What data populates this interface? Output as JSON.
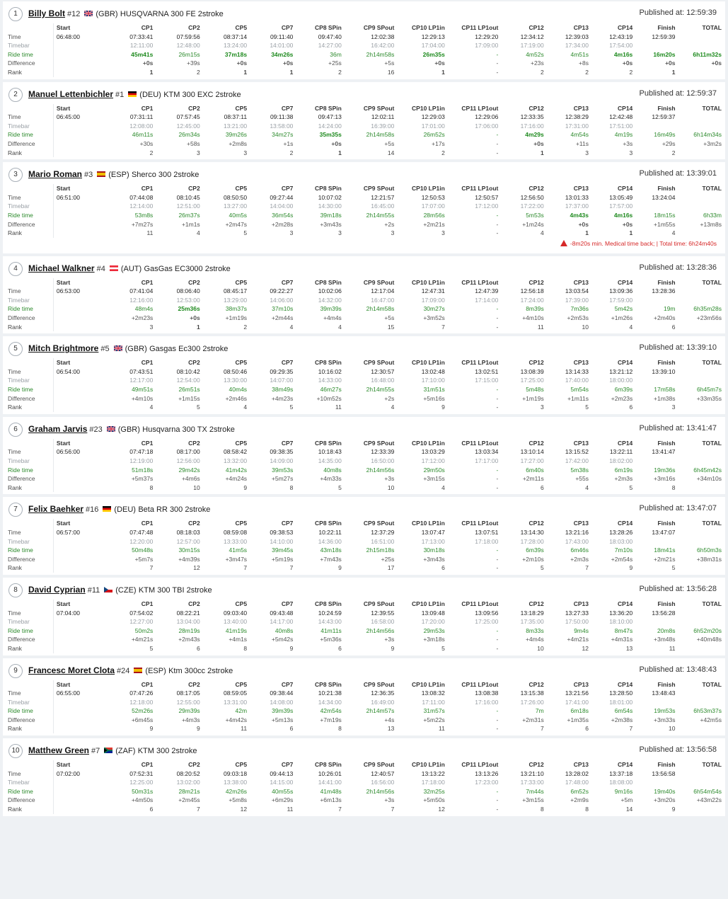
{
  "headers": [
    "",
    "Start",
    "CP1",
    "CP2",
    "CP5",
    "CP7",
    "CP8 SPin",
    "CP9 SPout",
    "CP10 LP1in",
    "CP11 LP1out",
    "CP12",
    "CP13",
    "CP14",
    "Finish",
    "TOTAL"
  ],
  "row_labels": {
    "time": "Time",
    "timebar": "Timebar",
    "ride": "Ride time",
    "diff": "Difference",
    "rank": "Rank"
  },
  "colors": {
    "green_highlight": "#1e8a1e",
    "ride_green": "#2e8b2e",
    "warning_red": "#d62828"
  },
  "riders": [
    {
      "pos": "1",
      "name": "Billy Bolt",
      "number": "#12",
      "country": "(GBR)",
      "flag": "GBR",
      "bike": "HUSQVARNA 300 FE 2stroke",
      "published": "Published at: 12:59:39",
      "time": [
        "06:48:00",
        "07:33:41",
        "07:59:56",
        "08:37:14",
        "09:11:40",
        "09:47:40",
        "12:02:38",
        "12:29:13",
        "12:29:20",
        "12:34:12",
        "12:39:03",
        "12:43:19",
        "12:59:39",
        ""
      ],
      "timebar": [
        "",
        "12:11:00",
        "12:48:00",
        "13:24:00",
        "14:01:00",
        "14:27:00",
        "16:42:00",
        "17:04:00",
        "17:09:00",
        "17:19:00",
        "17:34:00",
        "17:54:00",
        "",
        ""
      ],
      "ride": [
        "",
        "45m41s",
        "26m15s",
        "37m18s",
        "34m26s",
        "36m",
        "2h14m58s",
        "26m35s",
        "-",
        "4m52s",
        "4m51s",
        "4m16s",
        "16m20s",
        "6h11m32s"
      ],
      "diff": [
        "",
        "+0s",
        "+39s",
        "+0s",
        "+0s",
        "+25s",
        "+5s",
        "+0s",
        "-",
        "+23s",
        "+8s",
        "+0s",
        "+0s",
        "+0s"
      ],
      "rank": [
        "",
        "1",
        "2",
        "1",
        "1",
        "2",
        "16",
        "1",
        "-",
        "2",
        "2",
        "2",
        "1",
        ""
      ],
      "hl_ride": [
        1,
        3,
        4,
        7,
        11,
        12,
        13
      ],
      "hl_diff": [
        1,
        3,
        4,
        7,
        11,
        12,
        13
      ],
      "hl_rank": [
        1,
        3,
        4,
        7,
        12
      ],
      "note": ""
    },
    {
      "pos": "2",
      "name": "Manuel Lettenbichler",
      "number": "#1",
      "country": "(DEU)",
      "flag": "DEU",
      "bike": "KTM 300 EXC 2stroke",
      "published": "Published at: 12:59:37",
      "time": [
        "06:45:00",
        "07:31:11",
        "07:57:45",
        "08:37:11",
        "09:11:38",
        "09:47:13",
        "12:02:11",
        "12:29:03",
        "12:29:06",
        "12:33:35",
        "12:38:29",
        "12:42:48",
        "12:59:37",
        ""
      ],
      "timebar": [
        "",
        "12:08:00",
        "12:45:00",
        "13:21:00",
        "13:58:00",
        "14:24:00",
        "16:39:00",
        "17:01:00",
        "17:06:00",
        "17:16:00",
        "17:31:00",
        "17:51:00",
        "",
        ""
      ],
      "ride": [
        "",
        "46m11s",
        "26m34s",
        "39m26s",
        "34m27s",
        "35m35s",
        "2h14m58s",
        "26m52s",
        "-",
        "4m29s",
        "4m54s",
        "4m19s",
        "16m49s",
        "6h14m34s"
      ],
      "diff": [
        "",
        "+30s",
        "+58s",
        "+2m8s",
        "+1s",
        "+0s",
        "+5s",
        "+17s",
        "-",
        "+0s",
        "+11s",
        "+3s",
        "+29s",
        "+3m2s"
      ],
      "rank": [
        "",
        "2",
        "3",
        "3",
        "2",
        "1",
        "14",
        "2",
        "-",
        "1",
        "3",
        "3",
        "2",
        ""
      ],
      "hl_ride": [
        5,
        9
      ],
      "hl_diff": [
        5,
        9
      ],
      "hl_rank": [
        5,
        9
      ],
      "note": ""
    },
    {
      "pos": "3",
      "name": "Mario Roman",
      "number": "#3",
      "country": "(ESP)",
      "flag": "ESP",
      "bike": "Sherco 300 2stroke",
      "published": "Published at: 13:39:01",
      "time": [
        "06:51:00",
        "07:44:08",
        "08:10:45",
        "08:50:50",
        "09:27:44",
        "10:07:02",
        "12:21:57",
        "12:50:53",
        "12:50:57",
        "12:56:50",
        "13:01:33",
        "13:05:49",
        "13:24:04",
        ""
      ],
      "timebar": [
        "",
        "12:14:00",
        "12:51:00",
        "13:27:00",
        "14:04:00",
        "14:30:00",
        "16:45:00",
        "17:07:00",
        "17:12:00",
        "17:22:00",
        "17:37:00",
        "17:57:00",
        "",
        ""
      ],
      "ride": [
        "",
        "53m8s",
        "26m37s",
        "40m5s",
        "36m54s",
        "39m18s",
        "2h14m55s",
        "28m56s",
        "-",
        "5m53s",
        "4m43s",
        "4m16s",
        "18m15s",
        "6h33m"
      ],
      "diff": [
        "",
        "+7m27s",
        "+1m1s",
        "+2m47s",
        "+2m28s",
        "+3m43s",
        "+2s",
        "+2m21s",
        "-",
        "+1m24s",
        "+0s",
        "+0s",
        "+1m55s",
        "+13m8s"
      ],
      "rank": [
        "",
        "11",
        "4",
        "5",
        "3",
        "3",
        "3",
        "3",
        "-",
        "4",
        "1",
        "1",
        "4",
        ""
      ],
      "hl_ride": [
        10,
        11
      ],
      "hl_diff": [
        10,
        11
      ],
      "hl_rank": [
        10,
        11
      ],
      "note": "-8m20s min. Medical time back; | Total time: 6h24m40s"
    },
    {
      "pos": "4",
      "name": "Michael Walkner",
      "number": "#4",
      "country": "(AUT)",
      "flag": "AUT",
      "bike": "GasGas EC3000 2stroke",
      "published": "Published at: 13:28:36",
      "time": [
        "06:53:00",
        "07:41:04",
        "08:06:40",
        "08:45:17",
        "09:22:27",
        "10:02:06",
        "12:17:04",
        "12:47:31",
        "12:47:39",
        "12:56:18",
        "13:03:54",
        "13:09:36",
        "13:28:36",
        ""
      ],
      "timebar": [
        "",
        "12:16:00",
        "12:53:00",
        "13:29:00",
        "14:06:00",
        "14:32:00",
        "16:47:00",
        "17:09:00",
        "17:14:00",
        "17:24:00",
        "17:39:00",
        "17:59:00",
        "",
        ""
      ],
      "ride": [
        "",
        "48m4s",
        "25m36s",
        "38m37s",
        "37m10s",
        "39m39s",
        "2h14m58s",
        "30m27s",
        "-",
        "8m39s",
        "7m36s",
        "5m42s",
        "19m",
        "6h35m28s"
      ],
      "diff": [
        "",
        "+2m23s",
        "+0s",
        "+1m19s",
        "+2m44s",
        "+4m4s",
        "+5s",
        "+3m52s",
        "-",
        "+4m10s",
        "+2m53s",
        "+1m26s",
        "+2m40s",
        "+23m56s"
      ],
      "rank": [
        "",
        "3",
        "1",
        "2",
        "4",
        "4",
        "15",
        "7",
        "-",
        "11",
        "10",
        "4",
        "6",
        ""
      ],
      "hl_ride": [
        2
      ],
      "hl_diff": [
        2
      ],
      "hl_rank": [
        2
      ],
      "note": ""
    },
    {
      "pos": "5",
      "name": "Mitch Brightmore",
      "number": "#5",
      "country": "(GBR)",
      "flag": "GBR",
      "bike": "Gasgas Ec300 2stroke",
      "published": "Published at: 13:39:10",
      "time": [
        "06:54:00",
        "07:43:51",
        "08:10:42",
        "08:50:46",
        "09:29:35",
        "10:16:02",
        "12:30:57",
        "13:02:48",
        "13:02:51",
        "13:08:39",
        "13:14:33",
        "13:21:12",
        "13:39:10",
        ""
      ],
      "timebar": [
        "",
        "12:17:00",
        "12:54:00",
        "13:30:00",
        "14:07:00",
        "14:33:00",
        "16:48:00",
        "17:10:00",
        "17:15:00",
        "17:25:00",
        "17:40:00",
        "18:00:00",
        "",
        ""
      ],
      "ride": [
        "",
        "49m51s",
        "26m51s",
        "40m4s",
        "38m49s",
        "46m27s",
        "2h14m55s",
        "31m51s",
        "-",
        "5m48s",
        "5m54s",
        "6m39s",
        "17m58s",
        "6h45m7s"
      ],
      "diff": [
        "",
        "+4m10s",
        "+1m15s",
        "+2m46s",
        "+4m23s",
        "+10m52s",
        "+2s",
        "+5m16s",
        "-",
        "+1m19s",
        "+1m11s",
        "+2m23s",
        "+1m38s",
        "+33m35s"
      ],
      "rank": [
        "",
        "4",
        "5",
        "4",
        "5",
        "11",
        "4",
        "9",
        "-",
        "3",
        "5",
        "6",
        "3",
        ""
      ],
      "hl_ride": [],
      "hl_diff": [],
      "hl_rank": [],
      "note": ""
    },
    {
      "pos": "6",
      "name": "Graham Jarvis",
      "number": "#23",
      "country": "(GBR)",
      "flag": "GBR",
      "bike": "Husqvarna 300 TX 2stroke",
      "published": "Published at: 13:41:47",
      "time": [
        "06:56:00",
        "07:47:18",
        "08:17:00",
        "08:58:42",
        "09:38:35",
        "10:18:43",
        "12:33:39",
        "13:03:29",
        "13:03:34",
        "13:10:14",
        "13:15:52",
        "13:22:11",
        "13:41:47",
        ""
      ],
      "timebar": [
        "",
        "12:19:00",
        "12:56:00",
        "13:32:00",
        "14:09:00",
        "14:35:00",
        "16:50:00",
        "17:12:00",
        "17:17:00",
        "17:27:00",
        "17:42:00",
        "18:02:00",
        "",
        ""
      ],
      "ride": [
        "",
        "51m18s",
        "29m42s",
        "41m42s",
        "39m53s",
        "40m8s",
        "2h14m56s",
        "29m50s",
        "-",
        "6m40s",
        "5m38s",
        "6m19s",
        "19m36s",
        "6h45m42s"
      ],
      "diff": [
        "",
        "+5m37s",
        "+4m6s",
        "+4m24s",
        "+5m27s",
        "+4m33s",
        "+3s",
        "+3m15s",
        "-",
        "+2m11s",
        "+55s",
        "+2m3s",
        "+3m16s",
        "+34m10s"
      ],
      "rank": [
        "",
        "8",
        "10",
        "9",
        "8",
        "5",
        "10",
        "4",
        "-",
        "6",
        "4",
        "5",
        "8",
        ""
      ],
      "hl_ride": [],
      "hl_diff": [],
      "hl_rank": [],
      "note": ""
    },
    {
      "pos": "7",
      "name": "Felix Baehker",
      "number": "#16",
      "country": "(DEU)",
      "flag": "DEU",
      "bike": "Beta RR 300 2stroke",
      "published": "Published at: 13:47:07",
      "time": [
        "06:57:00",
        "07:47:48",
        "08:18:03",
        "08:59:08",
        "09:38:53",
        "10:22:11",
        "12:37:29",
        "13:07:47",
        "13:07:51",
        "13:14:30",
        "13:21:16",
        "13:28:26",
        "13:47:07",
        ""
      ],
      "timebar": [
        "",
        "12:20:00",
        "12:57:00",
        "13:33:00",
        "14:10:00",
        "14:36:00",
        "16:51:00",
        "17:13:00",
        "17:18:00",
        "17:28:00",
        "17:43:00",
        "18:03:00",
        "",
        ""
      ],
      "ride": [
        "",
        "50m48s",
        "30m15s",
        "41m5s",
        "39m45s",
        "43m18s",
        "2h15m18s",
        "30m18s",
        "-",
        "6m39s",
        "6m46s",
        "7m10s",
        "18m41s",
        "6h50m3s"
      ],
      "diff": [
        "",
        "+5m7s",
        "+4m39s",
        "+3m47s",
        "+5m19s",
        "+7m43s",
        "+25s",
        "+3m43s",
        "-",
        "+2m10s",
        "+2m3s",
        "+2m54s",
        "+2m21s",
        "+38m31s"
      ],
      "rank": [
        "",
        "7",
        "12",
        "7",
        "7",
        "9",
        "17",
        "6",
        "-",
        "5",
        "7",
        "9",
        "5",
        ""
      ],
      "hl_ride": [],
      "hl_diff": [],
      "hl_rank": [],
      "note": ""
    },
    {
      "pos": "8",
      "name": "David Cyprian",
      "number": "#11",
      "country": "(CZE)",
      "flag": "CZE",
      "bike": "KTM 300 TBI 2stroke",
      "published": "Published at: 13:56:28",
      "time": [
        "07:04:00",
        "07:54:02",
        "08:22:21",
        "09:03:40",
        "09:43:48",
        "10:24:59",
        "12:39:55",
        "13:09:48",
        "13:09:56",
        "13:18:29",
        "13:27:33",
        "13:36:20",
        "13:56:28",
        ""
      ],
      "timebar": [
        "",
        "12:27:00",
        "13:04:00",
        "13:40:00",
        "14:17:00",
        "14:43:00",
        "16:58:00",
        "17:20:00",
        "17:25:00",
        "17:35:00",
        "17:50:00",
        "18:10:00",
        "",
        ""
      ],
      "ride": [
        "",
        "50m2s",
        "28m19s",
        "41m19s",
        "40m8s",
        "41m11s",
        "2h14m56s",
        "29m53s",
        "-",
        "8m33s",
        "9m4s",
        "8m47s",
        "20m8s",
        "6h52m20s"
      ],
      "diff": [
        "",
        "+4m21s",
        "+2m43s",
        "+4m1s",
        "+5m42s",
        "+5m36s",
        "+3s",
        "+3m18s",
        "-",
        "+4m4s",
        "+4m21s",
        "+4m31s",
        "+3m48s",
        "+40m48s"
      ],
      "rank": [
        "",
        "5",
        "6",
        "8",
        "9",
        "6",
        "9",
        "5",
        "-",
        "10",
        "12",
        "13",
        "11",
        ""
      ],
      "hl_ride": [],
      "hl_diff": [],
      "hl_rank": [],
      "note": ""
    },
    {
      "pos": "9",
      "name": "Francesc Moret Clota",
      "number": "#24",
      "country": "(ESP)",
      "flag": "ESP",
      "bike": "Ktm 300cc 2stroke",
      "published": "Published at: 13:48:43",
      "time": [
        "06:55:00",
        "07:47:26",
        "08:17:05",
        "08:59:05",
        "09:38:44",
        "10:21:38",
        "12:36:35",
        "13:08:32",
        "13:08:38",
        "13:15:38",
        "13:21:56",
        "13:28:50",
        "13:48:43",
        ""
      ],
      "timebar": [
        "",
        "12:18:00",
        "12:55:00",
        "13:31:00",
        "14:08:00",
        "14:34:00",
        "16:49:00",
        "17:11:00",
        "17:16:00",
        "17:26:00",
        "17:41:00",
        "18:01:00",
        "",
        ""
      ],
      "ride": [
        "",
        "52m26s",
        "29m39s",
        "42m",
        "39m39s",
        "42m54s",
        "2h14m57s",
        "31m57s",
        "-",
        "7m",
        "6m18s",
        "6m54s",
        "19m53s",
        "6h53m37s"
      ],
      "diff": [
        "",
        "+6m45s",
        "+4m3s",
        "+4m42s",
        "+5m13s",
        "+7m19s",
        "+4s",
        "+5m22s",
        "-",
        "+2m31s",
        "+1m35s",
        "+2m38s",
        "+3m33s",
        "+42m5s"
      ],
      "rank": [
        "",
        "9",
        "9",
        "11",
        "6",
        "8",
        "13",
        "11",
        "-",
        "7",
        "6",
        "7",
        "10",
        ""
      ],
      "hl_ride": [],
      "hl_diff": [],
      "hl_rank": [],
      "note": ""
    },
    {
      "pos": "10",
      "name": "Matthew Green",
      "number": "#7",
      "country": "(ZAF)",
      "flag": "ZAF",
      "bike": "KTM 300 2stroke",
      "published": "Published at: 13:56:58",
      "time": [
        "07:02:00",
        "07:52:31",
        "08:20:52",
        "09:03:18",
        "09:44:13",
        "10:26:01",
        "12:40:57",
        "13:13:22",
        "13:13:26",
        "13:21:10",
        "13:28:02",
        "13:37:18",
        "13:56:58",
        ""
      ],
      "timebar": [
        "",
        "12:25:00",
        "13:02:00",
        "13:38:00",
        "14:15:00",
        "14:41:00",
        "16:56:00",
        "17:18:00",
        "17:23:00",
        "17:33:00",
        "17:48:00",
        "18:08:00",
        "",
        ""
      ],
      "ride": [
        "",
        "50m31s",
        "28m21s",
        "42m26s",
        "40m55s",
        "41m48s",
        "2h14m56s",
        "32m25s",
        "-",
        "7m44s",
        "6m52s",
        "9m16s",
        "19m40s",
        "6h54m54s"
      ],
      "diff": [
        "",
        "+4m50s",
        "+2m45s",
        "+5m8s",
        "+6m29s",
        "+6m13s",
        "+3s",
        "+5m50s",
        "-",
        "+3m15s",
        "+2m9s",
        "+5m",
        "+3m20s",
        "+43m22s"
      ],
      "rank": [
        "",
        "6",
        "7",
        "12",
        "11",
        "7",
        "7",
        "12",
        "-",
        "8",
        "8",
        "14",
        "9",
        ""
      ],
      "hl_ride": [],
      "hl_diff": [],
      "hl_rank": [],
      "note": ""
    }
  ]
}
